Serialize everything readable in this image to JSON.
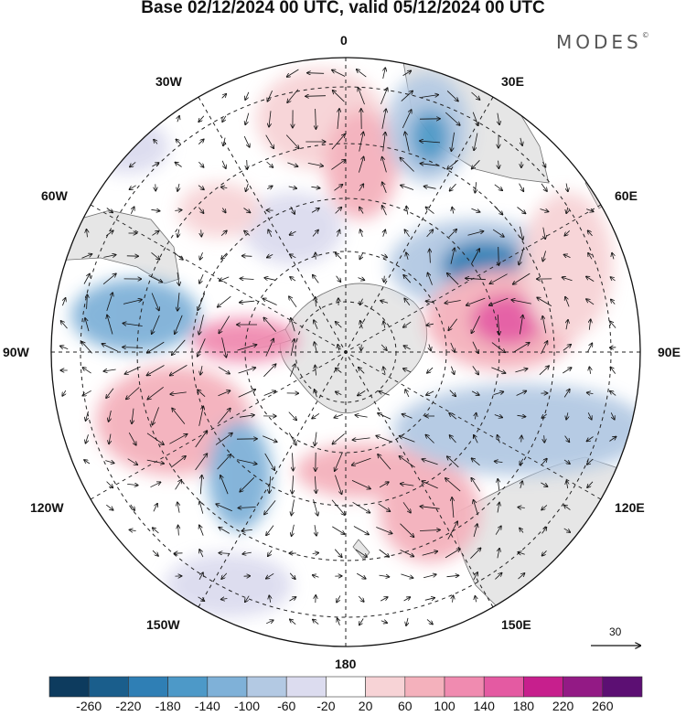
{
  "title": "Base 02/12/2024 00 UTC, valid 05/12/2024 00 UTC",
  "brand": {
    "name": "MODES",
    "mark": "©"
  },
  "longitude_labels": {
    "lon_0": "0",
    "lon_30e": "30E",
    "lon_60e": "60E",
    "lon_90e": "90E",
    "lon_120e": "120E",
    "lon_150e": "150E",
    "lon_180": "180",
    "lon_150w": "150W",
    "lon_120w": "120W",
    "lon_90w": "90W",
    "lon_60w": "60W",
    "lon_30w": "30W"
  },
  "projection": "south-polar-stereographic",
  "vector_reference": {
    "value": "30"
  },
  "colorbar": {
    "labels": [
      "-260",
      "-220",
      "-180",
      "-140",
      "-100",
      "-60",
      "-20",
      "20",
      "60",
      "100",
      "140",
      "180",
      "220",
      "260"
    ],
    "colors": [
      "#0d3b5e",
      "#1a5e8c",
      "#2f7fb5",
      "#4d99c8",
      "#7fb1d8",
      "#b3c9e3",
      "#dcdcef",
      "#ffffff",
      "#f7d3d6",
      "#f4b1bc",
      "#f08bb0",
      "#e45aa2",
      "#c71f8d",
      "#931a85",
      "#5c0f73"
    ]
  },
  "colors": {
    "land": "#e6e6e6",
    "coast": "#6f6f6f",
    "grid": "#222222"
  }
}
